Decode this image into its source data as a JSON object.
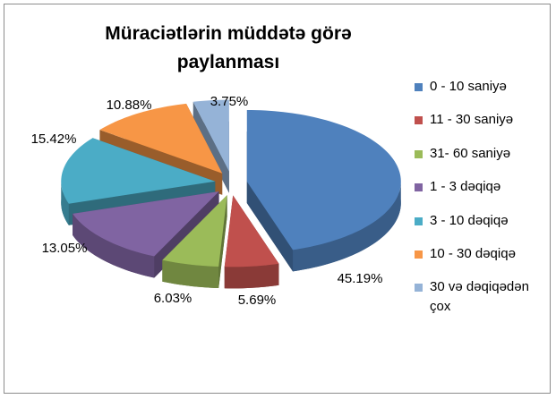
{
  "chart_data": {
    "type": "pie3d",
    "title": "Müraciətlərin müddətə görə paylanması",
    "categories": [
      "0 - 10 saniyə",
      "11 - 30 saniyə",
      "31- 60 saniyə",
      "1 - 3 dəqiqə",
      "3 - 10 dəqiqə",
      "10 - 30 dəqiqə",
      "30 və dəqiqədən çox"
    ],
    "values": [
      45.19,
      5.69,
      6.03,
      13.05,
      15.42,
      10.88,
      3.75
    ],
    "value_labels": [
      "45.19%",
      "5.69%",
      "6.03%",
      "13.05%",
      "15.42%",
      "10.88%",
      "3.75%"
    ],
    "colors": [
      "#4f81bd",
      "#c0504d",
      "#9bbb59",
      "#8064a2",
      "#4bacc6",
      "#f79646",
      "#95b3d7"
    ],
    "legend": "right"
  }
}
